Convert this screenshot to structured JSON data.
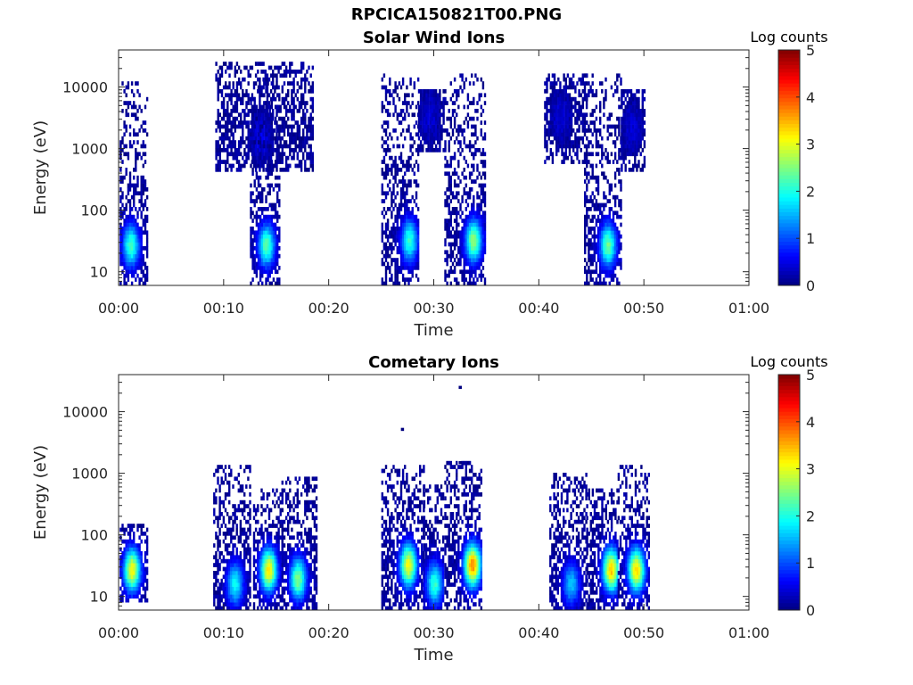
{
  "figure": {
    "title": "RPCICA150821T00.PNG"
  },
  "colormap": {
    "name": "jet",
    "stops": [
      "#00007f",
      "#0000ff",
      "#007fff",
      "#00ffff",
      "#7fff7f",
      "#ffff00",
      "#ff7f00",
      "#ff0000",
      "#7f0000"
    ]
  },
  "chart_data": [
    {
      "type": "heatmap",
      "title": "Solar Wind Ions",
      "xlabel": "Time",
      "ylabel": "Energy (eV)",
      "colorbar_label": "Log counts",
      "x_unit": "minutes after 00:00",
      "xlim": [
        0,
        60
      ],
      "ylim": [
        6,
        40000
      ],
      "yscale": "log",
      "clim": [
        0,
        5
      ],
      "colorbar_ticks": [
        "0",
        "1",
        "2",
        "3",
        "4",
        "5"
      ],
      "x_ticks": [
        0,
        10,
        20,
        30,
        40,
        50,
        60
      ],
      "x_tick_labels": [
        "00:00",
        "00:10",
        "00:20",
        "00:30",
        "00:40",
        "00:50",
        "01:00"
      ],
      "y_ticks": [
        10,
        100,
        1000,
        10000
      ],
      "y_tick_labels": [
        "10",
        "100",
        "1000",
        "10000"
      ],
      "bursts": [
        {
          "t_start": 0.1,
          "t_end": 2.7,
          "e_min": 6,
          "e_max": 12000,
          "peak_time": 1.1,
          "peak_energy": 25,
          "peak_log_counts": 2.1
        },
        {
          "t_start": 9.2,
          "t_end": 18.5,
          "e_min": 400,
          "e_max": 25000,
          "peak_time": 13.5,
          "peak_energy": 1500,
          "peak_log_counts": 0.4
        },
        {
          "t_start": 12.5,
          "t_end": 15.2,
          "e_min": 6,
          "e_max": 12000,
          "peak_time": 14.0,
          "peak_energy": 25,
          "peak_log_counts": 2.2
        },
        {
          "t_start": 25.0,
          "t_end": 28.5,
          "e_min": 6,
          "e_max": 15000,
          "peak_time": 27.6,
          "peak_energy": 30,
          "peak_log_counts": 2.0
        },
        {
          "t_start": 28.5,
          "t_end": 31.0,
          "e_min": 800,
          "e_max": 8000,
          "peak_time": 29.5,
          "peak_energy": 3000,
          "peak_log_counts": 0.3
        },
        {
          "t_start": 31.0,
          "t_end": 34.8,
          "e_min": 6,
          "e_max": 15000,
          "peak_time": 33.7,
          "peak_energy": 30,
          "peak_log_counts": 2.5
        },
        {
          "t_start": 40.5,
          "t_end": 44.5,
          "e_min": 500,
          "e_max": 15000,
          "peak_time": 42.0,
          "peak_energy": 3000,
          "peak_log_counts": 0.3
        },
        {
          "t_start": 44.3,
          "t_end": 47.8,
          "e_min": 6,
          "e_max": 15000,
          "peak_time": 46.5,
          "peak_energy": 25,
          "peak_log_counts": 2.3
        },
        {
          "t_start": 47.8,
          "t_end": 50.0,
          "e_min": 400,
          "e_max": 8000,
          "peak_time": 48.8,
          "peak_energy": 2000,
          "peak_log_counts": 0.3
        }
      ]
    },
    {
      "type": "heatmap",
      "title": "Cometary Ions",
      "xlabel": "Time",
      "ylabel": "Energy (eV)",
      "colorbar_label": "Log counts",
      "x_unit": "minutes after 00:00",
      "xlim": [
        0,
        60
      ],
      "ylim": [
        6,
        40000
      ],
      "yscale": "log",
      "clim": [
        0,
        5
      ],
      "colorbar_ticks": [
        "0",
        "1",
        "2",
        "3",
        "4",
        "5"
      ],
      "x_ticks": [
        0,
        10,
        20,
        30,
        40,
        50,
        60
      ],
      "x_tick_labels": [
        "00:00",
        "00:10",
        "00:20",
        "00:30",
        "00:40",
        "00:50",
        "01:00"
      ],
      "y_ticks": [
        10,
        100,
        1000,
        10000
      ],
      "y_tick_labels": [
        "10",
        "100",
        "1000",
        "10000"
      ],
      "bursts": [
        {
          "t_start": 0.1,
          "t_end": 2.8,
          "e_min": 8,
          "e_max": 150,
          "peak_time": 1.2,
          "peak_energy": 25,
          "peak_log_counts": 3.0
        },
        {
          "t_start": 9.0,
          "t_end": 12.5,
          "e_min": 6,
          "e_max": 1200,
          "peak_time": 11.0,
          "peak_energy": 15,
          "peak_log_counts": 1.8
        },
        {
          "t_start": 12.8,
          "t_end": 15.5,
          "e_min": 6,
          "e_max": 500,
          "peak_time": 14.2,
          "peak_energy": 25,
          "peak_log_counts": 3.1
        },
        {
          "t_start": 15.5,
          "t_end": 18.8,
          "e_min": 6,
          "e_max": 800,
          "peak_time": 17.0,
          "peak_energy": 18,
          "peak_log_counts": 2.4
        },
        {
          "t_start": 25.0,
          "t_end": 29.0,
          "e_min": 6,
          "e_max": 1200,
          "peak_time": 27.5,
          "peak_energy": 30,
          "peak_log_counts": 3.0
        },
        {
          "t_start": 29.0,
          "t_end": 30.8,
          "e_min": 6,
          "e_max": 600,
          "peak_time": 30.0,
          "peak_energy": 15,
          "peak_log_counts": 2.0
        },
        {
          "t_start": 31.0,
          "t_end": 34.5,
          "e_min": 6,
          "e_max": 1500,
          "peak_time": 33.6,
          "peak_energy": 30,
          "peak_log_counts": 3.6
        },
        {
          "t_start": 41.0,
          "t_end": 44.5,
          "e_min": 6,
          "e_max": 900,
          "peak_time": 43.0,
          "peak_energy": 15,
          "peak_log_counts": 1.5
        },
        {
          "t_start": 44.5,
          "t_end": 47.5,
          "e_min": 6,
          "e_max": 500,
          "peak_time": 46.8,
          "peak_energy": 25,
          "peak_log_counts": 3.3
        },
        {
          "t_start": 47.5,
          "t_end": 50.5,
          "e_min": 6,
          "e_max": 1200,
          "peak_time": 49.2,
          "peak_energy": 25,
          "peak_log_counts": 3.2
        }
      ],
      "isolated_points": [
        {
          "t": 27.0,
          "energy": 5200
        },
        {
          "t": 32.5,
          "energy": 25000
        },
        {
          "t": 32.5,
          "energy": 1500
        }
      ]
    }
  ]
}
